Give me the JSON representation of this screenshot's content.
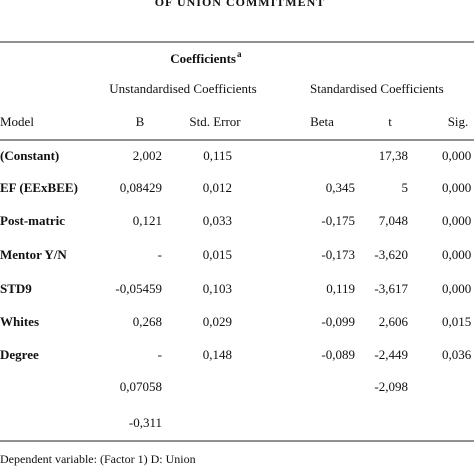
{
  "header": {
    "title": "OF UNION COMMITMENT"
  },
  "table": {
    "caption": "Coefficients",
    "caption_note": "a",
    "groups": [
      "Unstandardised Coefficients",
      "Standardised Coefficients"
    ],
    "columns": [
      "Model",
      "B",
      "Std. Error",
      "Beta",
      "t",
      "Sig."
    ],
    "rows": [
      [
        "(Constant)",
        "2,002",
        "0,115",
        "",
        "17,38",
        "0,000"
      ],
      [
        "EF (EExBEE)",
        "0,08429",
        "0,012",
        "0,345",
        "5",
        "0,000"
      ],
      [
        "Post-matric",
        "0,121",
        "0,033",
        "-0,175",
        "7,048",
        "0,000"
      ],
      [
        "Mentor Y/N",
        "-",
        "0,015",
        "-0,173",
        "-3,620",
        "0,000"
      ],
      [
        "STD9",
        "-0,05459",
        "0,103",
        "0,119",
        "-3,617",
        "0,000"
      ],
      [
        "Whites",
        "0,268",
        "0,029",
        "-0,099",
        "2,606",
        "0,015"
      ],
      [
        "Degree",
        "-",
        "0,148",
        "-0,089",
        "-2,449",
        "0,036"
      ],
      [
        "",
        "0,07058",
        "",
        "",
        "-2,098",
        ""
      ],
      [
        "",
        "-0,311",
        "",
        "",
        "",
        ""
      ]
    ]
  },
  "footer": "Dependent variable: (Factor 1) D: Union"
}
